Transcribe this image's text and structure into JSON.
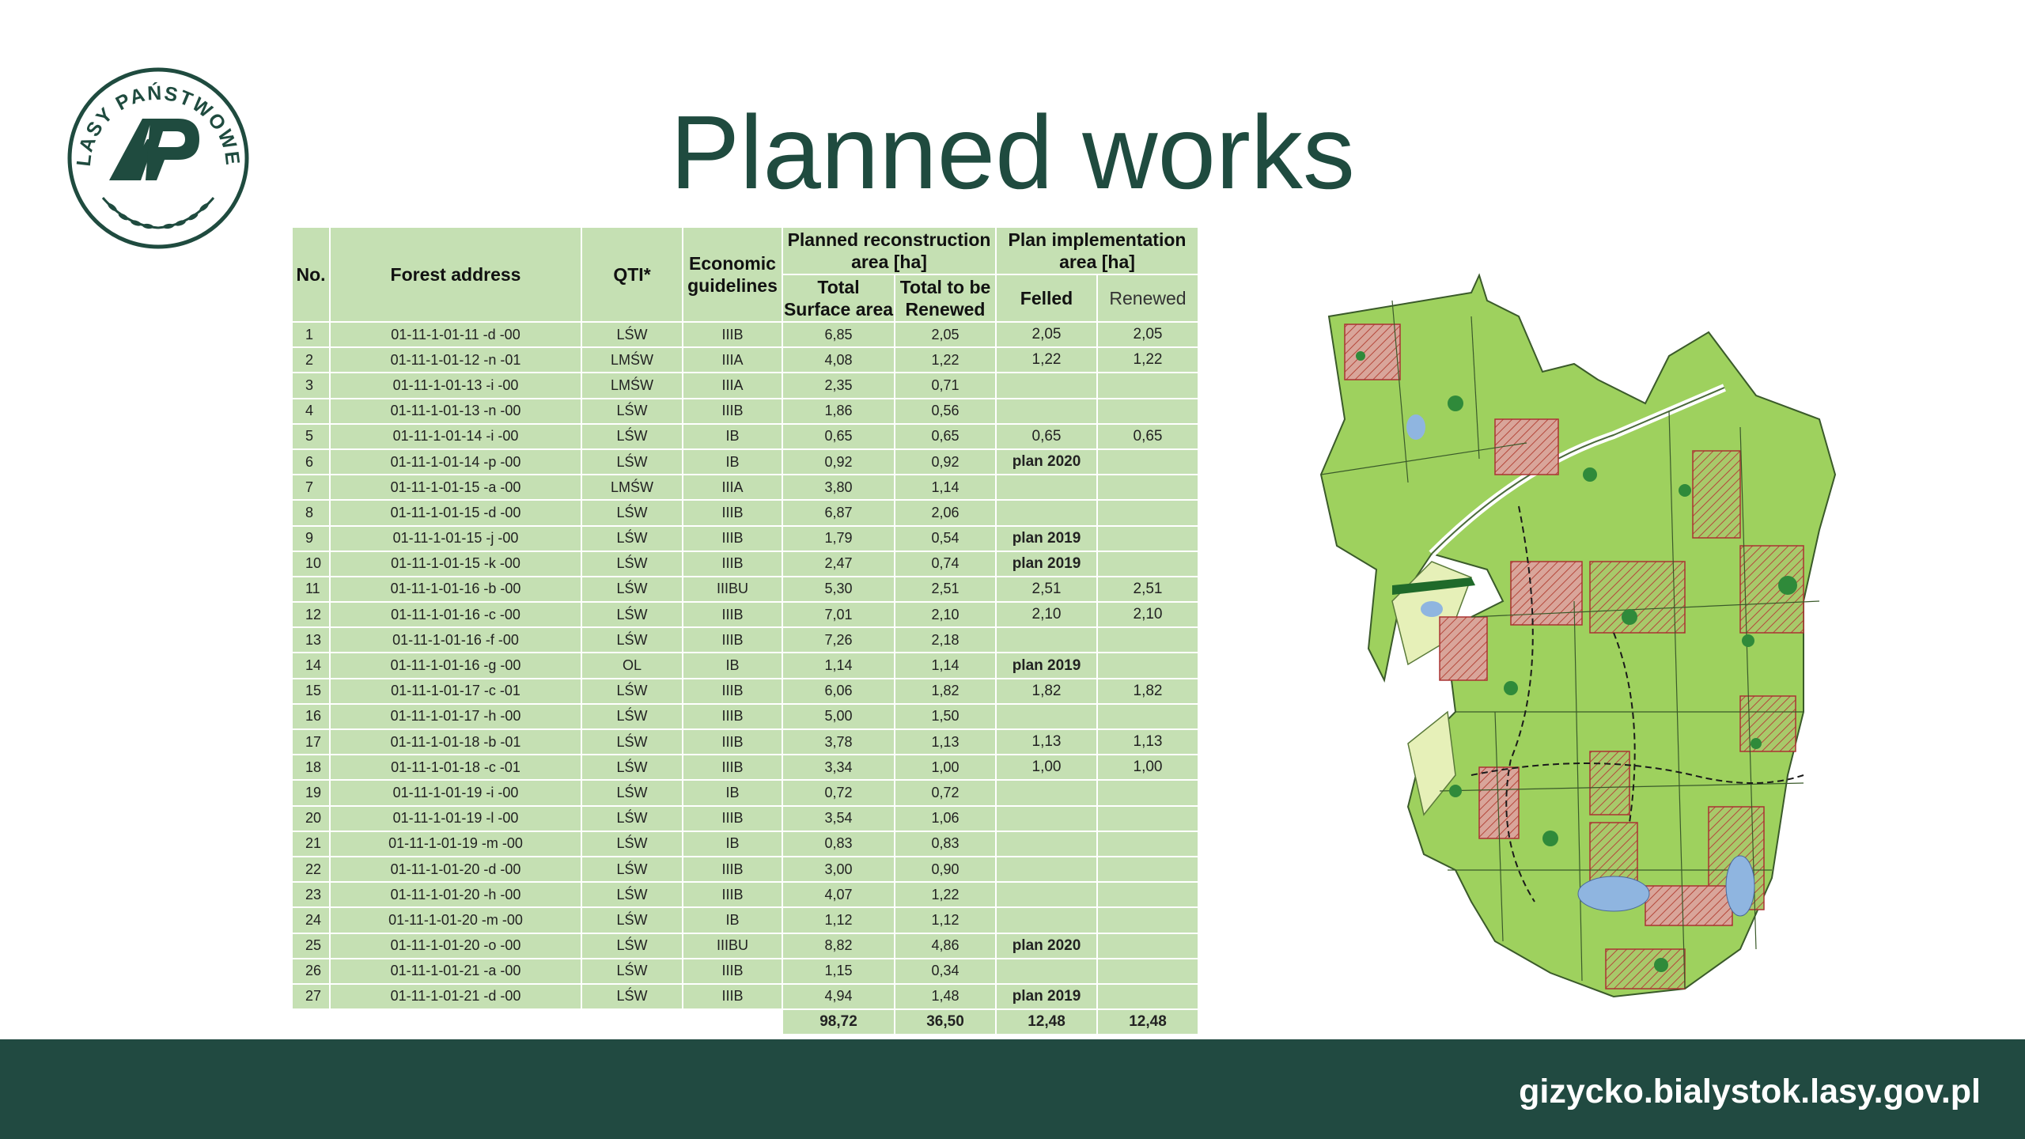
{
  "logo": {
    "text": "LASY PAŃSTWOWE",
    "colors": {
      "green": "#1f4b3f"
    }
  },
  "title": "Planned works",
  "table": {
    "headers": {
      "no": "No.",
      "forest_address": "Forest address",
      "qti": "QTI*",
      "economic_line1": "Economic",
      "economic_line2": "guidelines",
      "planned_line1": "Planned reconstruction",
      "planned_line2": "area [ha]",
      "total_line1": "Total",
      "total_line2": "Surface area",
      "renew_line1": "Total to be",
      "renew_line2": "Renewed",
      "impl_line1": "Plan implementation",
      "impl_line2": "area [ha]",
      "felled": "Felled",
      "renewed": "Renewed"
    },
    "rows": [
      {
        "no": "1",
        "address": "01-11-1-01-11   -d  -00",
        "qti": "LŚW",
        "eco": "IIIB",
        "total": "6,85",
        "renew": "2,05",
        "felled": "2,05",
        "renewed": "2,05"
      },
      {
        "no": "2",
        "address": "01-11-1-01-12   -n  -01",
        "qti": "LMŚW",
        "eco": "IIIA",
        "total": "4,08",
        "renew": "1,22",
        "felled": "1,22",
        "renewed": "1,22"
      },
      {
        "no": "3",
        "address": "01-11-1-01-13   -i   -00",
        "qti": "LMŚW",
        "eco": "IIIA",
        "total": "2,35",
        "renew": "0,71",
        "felled": "",
        "renewed": ""
      },
      {
        "no": "4",
        "address": "01-11-1-01-13   -n  -00",
        "qti": "LŚW",
        "eco": "IIIB",
        "total": "1,86",
        "renew": "0,56",
        "felled": "",
        "renewed": ""
      },
      {
        "no": "5",
        "address": "01-11-1-01-14   -i   -00",
        "qti": "LŚW",
        "eco": "IB",
        "total": "0,65",
        "renew": "0,65",
        "felled": "0,65",
        "renewed": "0,65"
      },
      {
        "no": "6",
        "address": "01-11-1-01-14   -p  -00",
        "qti": "LŚW",
        "eco": "IB",
        "total": "0,92",
        "renew": "0,92",
        "felled": "plan 2020",
        "renewed": ""
      },
      {
        "no": "7",
        "address": "01-11-1-01-15   -a  -00",
        "qti": "LMŚW",
        "eco": "IIIA",
        "total": "3,80",
        "renew": "1,14",
        "felled": "",
        "renewed": ""
      },
      {
        "no": "8",
        "address": "01-11-1-01-15   -d  -00",
        "qti": "LŚW",
        "eco": "IIIB",
        "total": "6,87",
        "renew": "2,06",
        "felled": "",
        "renewed": ""
      },
      {
        "no": "9",
        "address": "01-11-1-01-15   -j   -00",
        "qti": "LŚW",
        "eco": "IIIB",
        "total": "1,79",
        "renew": "0,54",
        "felled": "plan 2019",
        "renewed": ""
      },
      {
        "no": "10",
        "address": "01-11-1-01-15   -k  -00",
        "qti": "LŚW",
        "eco": "IIIB",
        "total": "2,47",
        "renew": "0,74",
        "felled": "plan 2019",
        "renewed": ""
      },
      {
        "no": "11",
        "address": "01-11-1-01-16   -b  -00",
        "qti": "LŚW",
        "eco": "IIIBU",
        "total": "5,30",
        "renew": "2,51",
        "felled": "2,51",
        "renewed": "2,51"
      },
      {
        "no": "12",
        "address": "01-11-1-01-16   -c  -00",
        "qti": "LŚW",
        "eco": "IIIB",
        "total": "7,01",
        "renew": "2,10",
        "felled": "2,10",
        "renewed": "2,10"
      },
      {
        "no": "13",
        "address": "01-11-1-01-16   -f  -00",
        "qti": "LŚW",
        "eco": "IIIB",
        "total": "7,26",
        "renew": "2,18",
        "felled": "",
        "renewed": ""
      },
      {
        "no": "14",
        "address": "01-11-1-01-16   -g  -00",
        "qti": "OL",
        "eco": "IB",
        "total": "1,14",
        "renew": "1,14",
        "felled": "plan 2019",
        "renewed": ""
      },
      {
        "no": "15",
        "address": "01-11-1-01-17   -c  -01",
        "qti": "LŚW",
        "eco": "IIIB",
        "total": "6,06",
        "renew": "1,82",
        "felled": "1,82",
        "renewed": "1,82"
      },
      {
        "no": "16",
        "address": "01-11-1-01-17   -h  -00",
        "qti": "LŚW",
        "eco": "IIIB",
        "total": "5,00",
        "renew": "1,50",
        "felled": "",
        "renewed": ""
      },
      {
        "no": "17",
        "address": "01-11-1-01-18   -b  -01",
        "qti": "LŚW",
        "eco": "IIIB",
        "total": "3,78",
        "renew": "1,13",
        "felled": "1,13",
        "renewed": "1,13"
      },
      {
        "no": "18",
        "address": "01-11-1-01-18   -c  -01",
        "qti": "LŚW",
        "eco": "IIIB",
        "total": "3,34",
        "renew": "1,00",
        "felled": "1,00",
        "renewed": "1,00"
      },
      {
        "no": "19",
        "address": "01-11-1-01-19   -i   -00",
        "qti": "LŚW",
        "eco": "IB",
        "total": "0,72",
        "renew": "0,72",
        "felled": "",
        "renewed": ""
      },
      {
        "no": "20",
        "address": "01-11-1-01-19   -l   -00",
        "qti": "LŚW",
        "eco": "IIIB",
        "total": "3,54",
        "renew": "1,06",
        "felled": "",
        "renewed": ""
      },
      {
        "no": "21",
        "address": "01-11-1-01-19   -m  -00",
        "qti": "LŚW",
        "eco": "IB",
        "total": "0,83",
        "renew": "0,83",
        "felled": "",
        "renewed": ""
      },
      {
        "no": "22",
        "address": "01-11-1-01-20   -d  -00",
        "qti": "LŚW",
        "eco": "IIIB",
        "total": "3,00",
        "renew": "0,90",
        "felled": "",
        "renewed": ""
      },
      {
        "no": "23",
        "address": "01-11-1-01-20   -h  -00",
        "qti": "LŚW",
        "eco": "IIIB",
        "total": "4,07",
        "renew": "1,22",
        "felled": "",
        "renewed": ""
      },
      {
        "no": "24",
        "address": "01-11-1-01-20   -m  -00",
        "qti": "LŚW",
        "eco": "IB",
        "total": "1,12",
        "renew": "1,12",
        "felled": "",
        "renewed": ""
      },
      {
        "no": "25",
        "address": "01-11-1-01-20   -o  -00",
        "qti": "LŚW",
        "eco": "IIIBU",
        "total": "8,82",
        "renew": "4,86",
        "felled": "plan 2020",
        "renewed": ""
      },
      {
        "no": "26",
        "address": "01-11-1-01-21   -a  -00",
        "qti": "LŚW",
        "eco": "IIIB",
        "total": "1,15",
        "renew": "0,34",
        "felled": "",
        "renewed": ""
      },
      {
        "no": "27",
        "address": "01-11-1-01-21   -d  -00",
        "qti": "LŚW",
        "eco": "IIIB",
        "total": "4,94",
        "renew": "1,48",
        "felled": "plan 2019",
        "renewed": ""
      }
    ],
    "totals": {
      "total": "98,72",
      "renew": "36,50",
      "felled": "12,48",
      "renewed": "12,48"
    }
  },
  "footer": {
    "url": "gizycko.bialystok.lasy.gov.pl"
  },
  "colors": {
    "table_cell": "#c5e0b3",
    "footer_bg": "#214a41",
    "title": "#1f4b3f"
  }
}
